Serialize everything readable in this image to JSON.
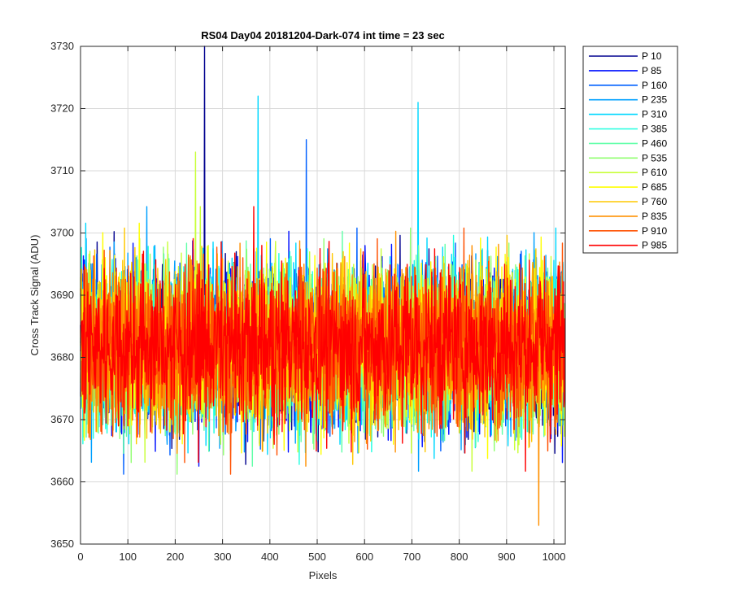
{
  "chart_data": {
    "type": "line",
    "title": "RS04 Day04 20181204-Dark-074 int time = 23 sec",
    "xlabel": "Pixels",
    "ylabel": "Cross Track Signal (ADU)",
    "xlim": [
      0,
      1024
    ],
    "ylim": [
      3650,
      3730
    ],
    "x_ticks": [
      0,
      100,
      200,
      300,
      400,
      500,
      600,
      700,
      800,
      900,
      1000
    ],
    "y_ticks": [
      3650,
      3660,
      3670,
      3680,
      3690,
      3700,
      3710,
      3720,
      3730
    ],
    "grid": true,
    "legend_position": "outside-top-right",
    "x": "pixel index 0 to 1023, step 1",
    "noise": {
      "mean_signal": 3682,
      "spread_std": 6.5,
      "typical_range": [
        3656,
        3710
      ],
      "notable_peaks": [
        {
          "series": "P 10",
          "x": 262,
          "y": 3730
        },
        {
          "series": "P 310",
          "x": 375,
          "y": 3722
        },
        {
          "series": "P 310",
          "x": 713,
          "y": 3721
        },
        {
          "series": "P 160",
          "x": 477,
          "y": 3715
        },
        {
          "series": "P 610",
          "x": 243,
          "y": 3713
        },
        {
          "series": "P 835",
          "x": 968,
          "y": 3653
        }
      ]
    },
    "series": [
      {
        "name": "P 10",
        "color": "#00008F"
      },
      {
        "name": "P 85",
        "color": "#0010FF"
      },
      {
        "name": "P 160",
        "color": "#0060FF"
      },
      {
        "name": "P 235",
        "color": "#00A0FF"
      },
      {
        "name": "P 310",
        "color": "#00D8FF"
      },
      {
        "name": "P 385",
        "color": "#20FFE0"
      },
      {
        "name": "P 460",
        "color": "#60FFA8"
      },
      {
        "name": "P 535",
        "color": "#90FF70"
      },
      {
        "name": "P 610",
        "color": "#C8FF38"
      },
      {
        "name": "P 685",
        "color": "#FFFF00"
      },
      {
        "name": "P 760",
        "color": "#FFC800"
      },
      {
        "name": "P 835",
        "color": "#FF9000"
      },
      {
        "name": "P 910",
        "color": "#FF5000"
      },
      {
        "name": "P 985",
        "color": "#FF0000"
      }
    ]
  }
}
